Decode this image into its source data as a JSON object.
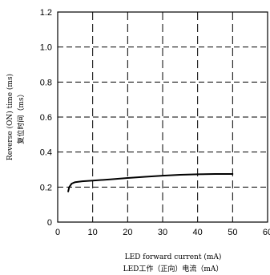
{
  "chart_data": {
    "type": "line",
    "xlabel": "LED forward current (mA)",
    "xlabel_cn": "LED工作（正向）电流（mA）",
    "ylabel": "Reverse (ON) time (ms)",
    "ylabel_cn": "复位时间（ms）",
    "xlim": [
      0,
      60
    ],
    "ylim": [
      0,
      1.2
    ],
    "x_ticks": [
      "0",
      "10",
      "20",
      "30",
      "40",
      "50",
      "60"
    ],
    "y_ticks": [
      "0",
      "0.2",
      "0.4",
      "0.6",
      "0.8",
      "1.0",
      "1.2"
    ],
    "grid": true,
    "grid_style": "dashed",
    "series": [
      {
        "x": [
          3,
          3.3,
          4,
          5,
          7,
          10,
          15,
          20,
          25,
          30,
          35,
          40,
          45,
          50
        ],
        "y": [
          0.175,
          0.2,
          0.22,
          0.228,
          0.233,
          0.237,
          0.244,
          0.252,
          0.259,
          0.265,
          0.27,
          0.273,
          0.275,
          0.275
        ]
      }
    ],
    "line_color": "#000000",
    "grid_color": "#000000"
  }
}
